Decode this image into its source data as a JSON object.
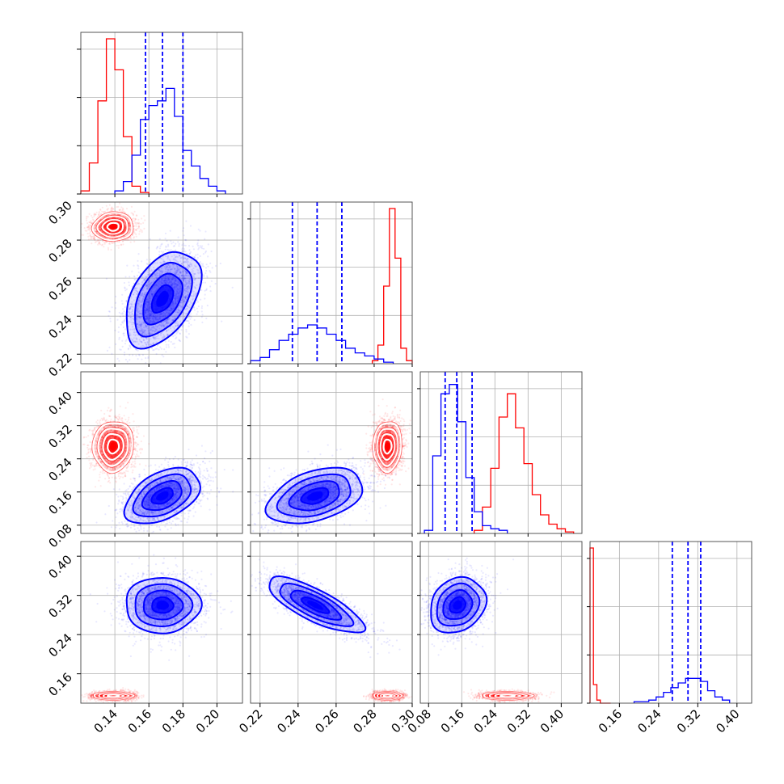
{
  "chart_data": {
    "type": "corner",
    "title": "",
    "grid": true,
    "parameters": [
      {
        "range": [
          0.12,
          0.215
        ],
        "ticks": [
          "0.14",
          "0.16",
          "0.18",
          "0.20"
        ],
        "tick_values": [
          0.14,
          0.16,
          0.18,
          0.2
        ]
      },
      {
        "range": [
          0.215,
          0.3
        ],
        "ticks": [
          "0.22",
          "0.24",
          "0.26",
          "0.28",
          "0.30"
        ],
        "tick_values": [
          0.22,
          0.24,
          0.26,
          0.28,
          0.3
        ]
      },
      {
        "range": [
          0.06,
          0.45
        ],
        "ticks": [
          "0.08",
          "0.16",
          "0.24",
          "0.32",
          "0.40"
        ],
        "tick_values": [
          0.08,
          0.16,
          0.24,
          0.32,
          0.4
        ]
      },
      {
        "range": [
          0.1,
          0.43
        ],
        "ticks": [
          "0.16",
          "0.24",
          "0.32",
          "0.40"
        ],
        "tick_values": [
          0.16,
          0.24,
          0.32,
          0.4
        ]
      }
    ],
    "series": [
      {
        "color": "#ff0000",
        "mean": [
          0.139,
          0.287,
          0.27,
          0.115
        ],
        "sd": [
          0.0055,
          0.0035,
          0.028,
          0.004
        ],
        "quantiles": [],
        "hist": [
          {
            "edges": [
              0.12,
              0.125,
              0.13,
              0.135,
              0.14,
              0.145,
              0.15,
              0.155,
              0.16
            ],
            "counts": [
              0.02,
              0.2,
              0.6,
              1.0,
              0.8,
              0.37,
              0.05,
              0.01
            ]
          },
          {
            "edges": [
              0.279,
              0.282,
              0.285,
              0.288,
              0.291,
              0.294,
              0.297,
              0.3
            ],
            "counts": [
              0.02,
              0.12,
              0.5,
              1.0,
              0.68,
              0.1,
              0.02
            ]
          },
          {
            "edges": [
              0.19,
              0.21,
              0.23,
              0.25,
              0.27,
              0.29,
              0.31,
              0.33,
              0.35,
              0.37,
              0.39,
              0.41,
              0.43
            ],
            "counts": [
              0.02,
              0.17,
              0.42,
              0.75,
              0.9,
              0.68,
              0.45,
              0.25,
              0.12,
              0.06,
              0.03,
              0.01
            ]
          },
          {
            "edges": [
              0.1,
              0.107,
              0.114,
              0.121,
              0.128,
              0.135,
              0.142
            ],
            "counts": [
              1.0,
              0.12,
              0.02,
              0.0,
              0.0,
              0.0
            ]
          }
        ]
      },
      {
        "color": "#0000ff",
        "mean": [
          0.168,
          0.249,
          0.15,
          0.3
        ],
        "sd": [
          0.0105,
          0.012,
          0.032,
          0.027
        ],
        "quantiles": [
          [
            0.158,
            0.168,
            0.18
          ],
          [
            0.237,
            0.25,
            0.263
          ],
          [
            0.12,
            0.148,
            0.185
          ],
          [
            0.268,
            0.3,
            0.326
          ]
        ],
        "hist": [
          {
            "edges": [
              0.14,
              0.145,
              0.15,
              0.155,
              0.16,
              0.165,
              0.17,
              0.175,
              0.18,
              0.185,
              0.19,
              0.195,
              0.2,
              0.205
            ],
            "counts": [
              0.02,
              0.08,
              0.25,
              0.48,
              0.57,
              0.6,
              0.68,
              0.5,
              0.28,
              0.18,
              0.1,
              0.05,
              0.02
            ]
          },
          {
            "edges": [
              0.215,
              0.22,
              0.225,
              0.23,
              0.235,
              0.24,
              0.245,
              0.25,
              0.255,
              0.26,
              0.265,
              0.27,
              0.275,
              0.28,
              0.285,
              0.29
            ],
            "counts": [
              0.02,
              0.04,
              0.09,
              0.15,
              0.19,
              0.23,
              0.25,
              0.23,
              0.19,
              0.15,
              0.1,
              0.07,
              0.05,
              0.03,
              0.01
            ]
          },
          {
            "edges": [
              0.07,
              0.09,
              0.11,
              0.13,
              0.15,
              0.17,
              0.19,
              0.21,
              0.23,
              0.25,
              0.27
            ],
            "counts": [
              0.02,
              0.5,
              0.9,
              0.96,
              0.72,
              0.36,
              0.14,
              0.05,
              0.03,
              0.02
            ]
          },
          {
            "edges": [
              0.19,
              0.205,
              0.22,
              0.235,
              0.25,
              0.265,
              0.28,
              0.295,
              0.31,
              0.325,
              0.34,
              0.355,
              0.37,
              0.385
            ],
            "counts": [
              0.01,
              0.01,
              0.02,
              0.04,
              0.07,
              0.1,
              0.13,
              0.16,
              0.16,
              0.14,
              0.08,
              0.04,
              0.02
            ]
          }
        ]
      }
    ],
    "correlations": {
      "0-1": [
        0.05,
        0.45
      ],
      "0-2": [
        0.05,
        0.45
      ],
      "1-2": [
        0.05,
        0.4
      ],
      "0-3": [
        0.0,
        0.0
      ],
      "1-3": [
        0.0,
        -0.78
      ],
      "2-3": [
        0.0,
        0.2
      ]
    }
  }
}
